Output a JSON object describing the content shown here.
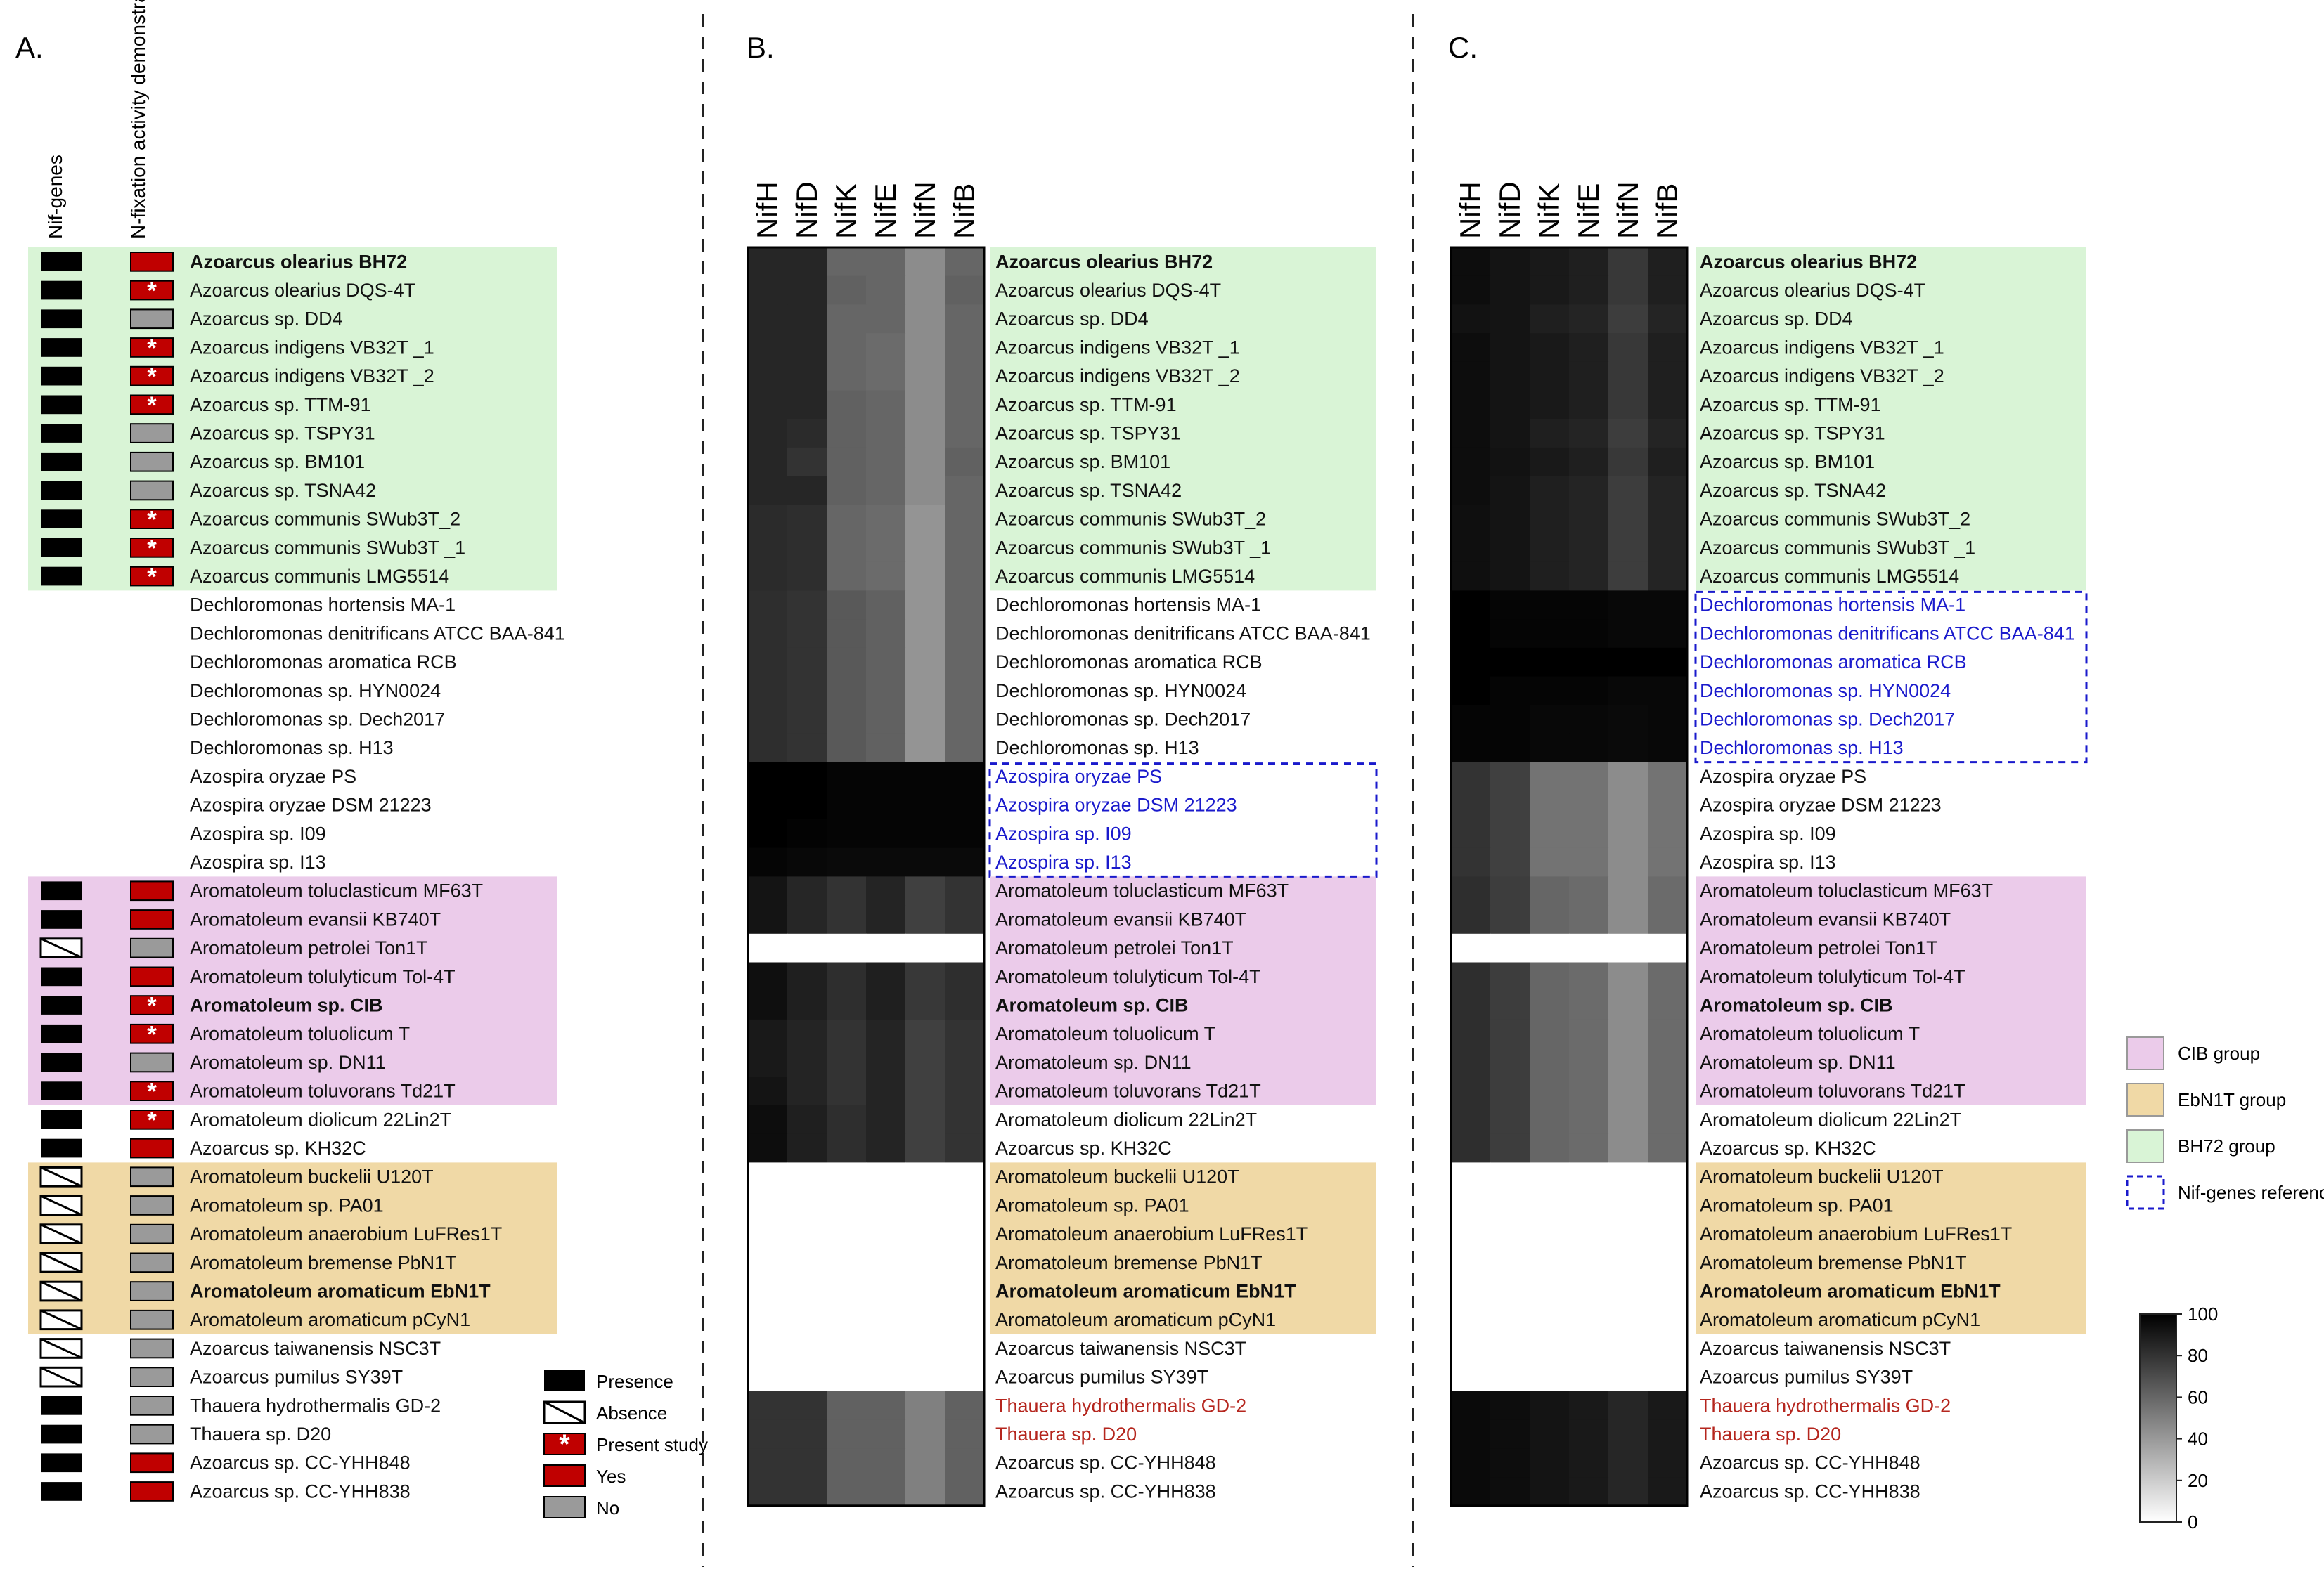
{
  "chart_data": {
    "type": "heatmap",
    "panels": [
      {
        "label": "A.",
        "columns": [
          "Nif-genes",
          "N-fixation activity demonstrated"
        ]
      },
      {
        "label": "B.",
        "columns": [
          "NifH",
          "NifD",
          "NifK",
          "NifE",
          "NifN",
          "NifB"
        ]
      },
      {
        "label": "C.",
        "columns": [
          "NifH",
          "NifD",
          "NifK",
          "NifE",
          "NifN",
          "NifB"
        ]
      }
    ],
    "strains": [
      {
        "name": "Azoarcus olearius BH72",
        "bold": true,
        "group": "BH72",
        "nif": "presence",
        "nfix": "yes",
        "b_tone": "normal",
        "c_tone": "normal"
      },
      {
        "name": "Azoarcus olearius DQS-4T",
        "bold": false,
        "group": "BH72",
        "nif": "presence",
        "nfix": "present_study",
        "b_tone": "normal",
        "c_tone": "normal"
      },
      {
        "name": "Azoarcus sp. DD4",
        "bold": false,
        "group": "BH72",
        "nif": "presence",
        "nfix": "no",
        "b_tone": "normal",
        "c_tone": "normal"
      },
      {
        "name": "Azoarcus indigens VB32T _1",
        "bold": false,
        "group": "BH72",
        "nif": "presence",
        "nfix": "present_study",
        "b_tone": "normal",
        "c_tone": "normal"
      },
      {
        "name": "Azoarcus indigens VB32T _2",
        "bold": false,
        "group": "BH72",
        "nif": "presence",
        "nfix": "present_study",
        "b_tone": "normal",
        "c_tone": "normal"
      },
      {
        "name": "Azoarcus sp. TTM-91",
        "bold": false,
        "group": "BH72",
        "nif": "presence",
        "nfix": "present_study",
        "b_tone": "normal",
        "c_tone": "normal"
      },
      {
        "name": "Azoarcus sp. TSPY31",
        "bold": false,
        "group": "BH72",
        "nif": "presence",
        "nfix": "no",
        "b_tone": "normal",
        "c_tone": "normal"
      },
      {
        "name": "Azoarcus sp. BM101",
        "bold": false,
        "group": "BH72",
        "nif": "presence",
        "nfix": "no",
        "b_tone": "normal",
        "c_tone": "normal"
      },
      {
        "name": "Azoarcus sp. TSNA42",
        "bold": false,
        "group": "BH72",
        "nif": "presence",
        "nfix": "no",
        "b_tone": "normal",
        "c_tone": "normal"
      },
      {
        "name": "Azoarcus communis SWub3T_2",
        "bold": false,
        "group": "BH72",
        "nif": "presence",
        "nfix": "present_study",
        "b_tone": "normal",
        "c_tone": "normal"
      },
      {
        "name": "Azoarcus communis SWub3T _1",
        "bold": false,
        "group": "BH72",
        "nif": "presence",
        "nfix": "present_study",
        "b_tone": "normal",
        "c_tone": "normal"
      },
      {
        "name": "Azoarcus communis LMG5514",
        "bold": false,
        "group": "BH72",
        "nif": "presence",
        "nfix": "present_study",
        "b_tone": "normal",
        "c_tone": "normal"
      },
      {
        "name": "Dechloromonas hortensis MA-1",
        "bold": false,
        "group": "",
        "nif": "",
        "nfix": "",
        "b_tone": "normal",
        "c_tone": "reference"
      },
      {
        "name": "Dechloromonas denitrificans ATCC BAA-841",
        "bold": false,
        "group": "",
        "nif": "",
        "nfix": "",
        "b_tone": "normal",
        "c_tone": "reference"
      },
      {
        "name": "Dechloromonas aromatica RCB",
        "bold": false,
        "group": "",
        "nif": "",
        "nfix": "",
        "b_tone": "normal",
        "c_tone": "reference"
      },
      {
        "name": "Dechloromonas sp. HYN0024",
        "bold": false,
        "group": "",
        "nif": "",
        "nfix": "",
        "b_tone": "normal",
        "c_tone": "reference"
      },
      {
        "name": "Dechloromonas sp. Dech2017",
        "bold": false,
        "group": "",
        "nif": "",
        "nfix": "",
        "b_tone": "normal",
        "c_tone": "reference"
      },
      {
        "name": "Dechloromonas sp. H13",
        "bold": false,
        "group": "",
        "nif": "",
        "nfix": "",
        "b_tone": "normal",
        "c_tone": "reference"
      },
      {
        "name": "Azospira oryzae PS",
        "bold": false,
        "group": "",
        "nif": "",
        "nfix": "",
        "b_tone": "reference",
        "c_tone": "normal"
      },
      {
        "name": "Azospira oryzae DSM 21223",
        "bold": false,
        "group": "",
        "nif": "",
        "nfix": "",
        "b_tone": "reference",
        "c_tone": "normal"
      },
      {
        "name": "Azospira sp. I09",
        "bold": false,
        "group": "",
        "nif": "",
        "nfix": "",
        "b_tone": "reference",
        "c_tone": "normal"
      },
      {
        "name": "Azospira sp. I13",
        "bold": false,
        "group": "",
        "nif": "",
        "nfix": "",
        "b_tone": "reference",
        "c_tone": "normal"
      },
      {
        "name": "Aromatoleum toluclasticum MF63T",
        "bold": false,
        "group": "CIB",
        "nif": "presence",
        "nfix": "yes",
        "b_tone": "normal",
        "c_tone": "normal"
      },
      {
        "name": "Aromatoleum evansii KB740T",
        "bold": false,
        "group": "CIB",
        "nif": "presence",
        "nfix": "yes",
        "b_tone": "normal",
        "c_tone": "normal"
      },
      {
        "name": "Aromatoleum petrolei Ton1T",
        "bold": false,
        "group": "CIB",
        "nif": "absence",
        "nfix": "no",
        "b_tone": "normal",
        "c_tone": "normal"
      },
      {
        "name": "Aromatoleum tolulyticum Tol-4T",
        "bold": false,
        "group": "CIB",
        "nif": "presence",
        "nfix": "yes",
        "b_tone": "normal",
        "c_tone": "normal"
      },
      {
        "name": "Aromatoleum sp. CIB",
        "bold": true,
        "group": "CIB",
        "nif": "presence",
        "nfix": "present_study",
        "b_tone": "normal",
        "c_tone": "normal"
      },
      {
        "name": "Aromatoleum toluolicum T",
        "bold": false,
        "group": "CIB",
        "nif": "presence",
        "nfix": "present_study",
        "b_tone": "normal",
        "c_tone": "normal"
      },
      {
        "name": "Aromatoleum sp. DN11",
        "bold": false,
        "group": "CIB",
        "nif": "presence",
        "nfix": "no",
        "b_tone": "normal",
        "c_tone": "normal"
      },
      {
        "name": "Aromatoleum toluvorans Td21T",
        "bold": false,
        "group": "CIB",
        "nif": "presence",
        "nfix": "present_study",
        "b_tone": "normal",
        "c_tone": "normal"
      },
      {
        "name": "Aromatoleum diolicum 22Lin2T",
        "bold": false,
        "group": "",
        "nif": "presence",
        "nfix": "present_study",
        "b_tone": "normal",
        "c_tone": "normal"
      },
      {
        "name": "Azoarcus sp. KH32C",
        "bold": false,
        "group": "",
        "nif": "presence",
        "nfix": "yes",
        "b_tone": "normal",
        "c_tone": "normal"
      },
      {
        "name": "Aromatoleum buckelii U120T",
        "bold": false,
        "group": "EbN1T",
        "nif": "absence",
        "nfix": "no",
        "b_tone": "normal",
        "c_tone": "normal"
      },
      {
        "name": "Aromatoleum sp. PA01",
        "bold": false,
        "group": "EbN1T",
        "nif": "absence",
        "nfix": "no",
        "b_tone": "normal",
        "c_tone": "normal"
      },
      {
        "name": "Aromatoleum anaerobium LuFRes1T",
        "bold": false,
        "group": "EbN1T",
        "nif": "absence",
        "nfix": "no",
        "b_tone": "normal",
        "c_tone": "normal"
      },
      {
        "name": "Aromatoleum bremense PbN1T",
        "bold": false,
        "group": "EbN1T",
        "nif": "absence",
        "nfix": "no",
        "b_tone": "normal",
        "c_tone": "normal"
      },
      {
        "name": "Aromatoleum aromaticum EbN1T",
        "bold": true,
        "group": "EbN1T",
        "nif": "absence",
        "nfix": "no",
        "b_tone": "normal",
        "c_tone": "normal"
      },
      {
        "name": "Aromatoleum aromaticum pCyN1",
        "bold": false,
        "group": "EbN1T",
        "nif": "absence",
        "nfix": "no",
        "b_tone": "normal",
        "c_tone": "normal"
      },
      {
        "name": "Azoarcus taiwanensis NSC3T",
        "bold": false,
        "group": "",
        "nif": "absence",
        "nfix": "no",
        "b_tone": "normal",
        "c_tone": "normal"
      },
      {
        "name": "Azoarcus pumilus SY39T",
        "bold": false,
        "group": "",
        "nif": "absence",
        "nfix": "no",
        "b_tone": "normal",
        "c_tone": "normal"
      },
      {
        "name": "Thauera hydrothermalis GD-2",
        "bold": false,
        "group": "",
        "nif": "presence",
        "nfix": "no",
        "b_tone": "red",
        "c_tone": "red"
      },
      {
        "name": "Thauera sp. D20",
        "bold": false,
        "group": "",
        "nif": "presence",
        "nfix": "no",
        "b_tone": "red",
        "c_tone": "red"
      },
      {
        "name": "Azoarcus sp. CC-YHH848",
        "bold": false,
        "group": "",
        "nif": "presence",
        "nfix": "yes",
        "b_tone": "normal",
        "c_tone": "normal"
      },
      {
        "name": "Azoarcus sp. CC-YHH838",
        "bold": false,
        "group": "",
        "nif": "presence",
        "nfix": "yes",
        "b_tone": "normal",
        "c_tone": "normal"
      }
    ],
    "heatmap_B": [
      [
        85,
        85,
        60,
        60,
        45,
        60
      ],
      [
        85,
        85,
        62,
        60,
        45,
        62
      ],
      [
        85,
        85,
        60,
        60,
        45,
        60
      ],
      [
        85,
        85,
        60,
        58,
        45,
        60
      ],
      [
        85,
        85,
        60,
        58,
        45,
        60
      ],
      [
        85,
        85,
        62,
        60,
        45,
        60
      ],
      [
        85,
        83,
        62,
        60,
        45,
        60
      ],
      [
        85,
        80,
        62,
        60,
        45,
        62
      ],
      [
        85,
        85,
        62,
        60,
        45,
        60
      ],
      [
        83,
        82,
        60,
        58,
        42,
        60
      ],
      [
        83,
        82,
        60,
        58,
        42,
        60
      ],
      [
        83,
        82,
        60,
        58,
        42,
        60
      ],
      [
        82,
        80,
        65,
        62,
        42,
        60
      ],
      [
        82,
        80,
        65,
        62,
        42,
        60
      ],
      [
        82,
        80,
        65,
        62,
        42,
        60
      ],
      [
        82,
        80,
        65,
        62,
        42,
        60
      ],
      [
        82,
        80,
        65,
        62,
        42,
        60
      ],
      [
        82,
        80,
        65,
        62,
        42,
        60
      ],
      [
        100,
        100,
        98,
        98,
        98,
        98
      ],
      [
        100,
        100,
        98,
        98,
        98,
        98
      ],
      [
        100,
        99,
        98,
        98,
        98,
        98
      ],
      [
        98,
        97,
        96,
        96,
        96,
        96
      ],
      [
        92,
        85,
        80,
        86,
        75,
        80
      ],
      [
        92,
        85,
        80,
        86,
        75,
        80
      ],
      [
        null,
        null,
        null,
        null,
        null,
        null
      ],
      [
        94,
        88,
        82,
        88,
        78,
        82
      ],
      [
        94,
        88,
        82,
        88,
        78,
        82
      ],
      [
        90,
        86,
        80,
        86,
        75,
        80
      ],
      [
        90,
        86,
        80,
        86,
        75,
        80
      ],
      [
        92,
        86,
        80,
        86,
        75,
        80
      ],
      [
        95,
        88,
        82,
        86,
        75,
        80
      ],
      [
        95,
        88,
        82,
        86,
        75,
        80
      ],
      [
        null,
        null,
        null,
        null,
        null,
        null
      ],
      [
        null,
        null,
        null,
        null,
        null,
        null
      ],
      [
        null,
        null,
        null,
        null,
        null,
        null
      ],
      [
        null,
        null,
        null,
        null,
        null,
        null
      ],
      [
        null,
        null,
        null,
        null,
        null,
        null
      ],
      [
        null,
        null,
        null,
        null,
        null,
        null
      ],
      [
        null,
        null,
        null,
        null,
        null,
        null
      ],
      [
        null,
        null,
        null,
        null,
        null,
        null
      ],
      [
        80,
        80,
        62,
        62,
        50,
        62
      ],
      [
        80,
        80,
        62,
        62,
        50,
        62
      ],
      [
        80,
        80,
        62,
        62,
        50,
        62
      ],
      [
        80,
        80,
        62,
        62,
        50,
        62
      ]
    ],
    "heatmap_C": [
      [
        95,
        92,
        90,
        88,
        78,
        88
      ],
      [
        95,
        92,
        90,
        88,
        78,
        88
      ],
      [
        93,
        92,
        88,
        86,
        76,
        86
      ],
      [
        95,
        92,
        90,
        88,
        78,
        88
      ],
      [
        95,
        92,
        90,
        88,
        78,
        88
      ],
      [
        95,
        92,
        90,
        88,
        78,
        88
      ],
      [
        95,
        92,
        88,
        86,
        76,
        86
      ],
      [
        95,
        93,
        90,
        88,
        78,
        88
      ],
      [
        95,
        92,
        88,
        86,
        76,
        86
      ],
      [
        94,
        92,
        88,
        86,
        76,
        86
      ],
      [
        94,
        92,
        88,
        86,
        76,
        86
      ],
      [
        94,
        92,
        88,
        86,
        76,
        86
      ],
      [
        100,
        98,
        98,
        98,
        97,
        97
      ],
      [
        100,
        98,
        98,
        98,
        97,
        97
      ],
      [
        100,
        100,
        100,
        100,
        100,
        100
      ],
      [
        100,
        98,
        98,
        98,
        97,
        97
      ],
      [
        98,
        98,
        97,
        97,
        96,
        97
      ],
      [
        98,
        98,
        97,
        97,
        96,
        97
      ],
      [
        80,
        75,
        55,
        55,
        45,
        55
      ],
      [
        80,
        75,
        55,
        55,
        45,
        55
      ],
      [
        80,
        75,
        55,
        55,
        45,
        55
      ],
      [
        80,
        75,
        55,
        55,
        45,
        55
      ],
      [
        82,
        76,
        60,
        58,
        45,
        58
      ],
      [
        82,
        76,
        60,
        58,
        45,
        58
      ],
      [
        null,
        null,
        null,
        null,
        null,
        null
      ],
      [
        82,
        76,
        60,
        58,
        45,
        58
      ],
      [
        82,
        76,
        60,
        58,
        45,
        58
      ],
      [
        82,
        76,
        60,
        58,
        45,
        58
      ],
      [
        82,
        76,
        60,
        58,
        45,
        58
      ],
      [
        82,
        76,
        60,
        58,
        45,
        58
      ],
      [
        82,
        76,
        60,
        58,
        45,
        58
      ],
      [
        82,
        76,
        60,
        58,
        45,
        58
      ],
      [
        null,
        null,
        null,
        null,
        null,
        null
      ],
      [
        null,
        null,
        null,
        null,
        null,
        null
      ],
      [
        null,
        null,
        null,
        null,
        null,
        null
      ],
      [
        null,
        null,
        null,
        null,
        null,
        null
      ],
      [
        null,
        null,
        null,
        null,
        null,
        null
      ],
      [
        null,
        null,
        null,
        null,
        null,
        null
      ],
      [
        null,
        null,
        null,
        null,
        null,
        null
      ],
      [
        null,
        null,
        null,
        null,
        null,
        null
      ],
      [
        96,
        95,
        92,
        90,
        85,
        90
      ],
      [
        96,
        95,
        92,
        90,
        85,
        90
      ],
      [
        96,
        95,
        92,
        90,
        85,
        90
      ],
      [
        96,
        95,
        92,
        90,
        85,
        90
      ]
    ],
    "legend_A": [
      {
        "key": "presence",
        "label": "Presence"
      },
      {
        "key": "absence",
        "label": "Absence"
      },
      {
        "key": "present_study",
        "label": "Present study"
      },
      {
        "key": "yes",
        "label": "Yes"
      },
      {
        "key": "no",
        "label": "No"
      }
    ],
    "group_legend": [
      {
        "key": "CIB",
        "label": "CIB group"
      },
      {
        "key": "EbN1T",
        "label": "EbN1T group"
      },
      {
        "key": "BH72",
        "label": "BH72 group"
      },
      {
        "key": "ref",
        "label": "Nif-genes reference"
      }
    ],
    "colorbar": {
      "min": 0,
      "max": 100,
      "ticks": [
        "100",
        "80",
        "60",
        "40",
        "20",
        "0"
      ]
    },
    "colors": {
      "BH72": "#d9f4d6",
      "CIB": "#ebcbea",
      "EbN1T": "#f0d9a6",
      "yes_red": "#c00000",
      "no_grey": "#9a9a9a",
      "reference_blue": "#1a1acc",
      "thauera_red": "#b5261e"
    }
  }
}
